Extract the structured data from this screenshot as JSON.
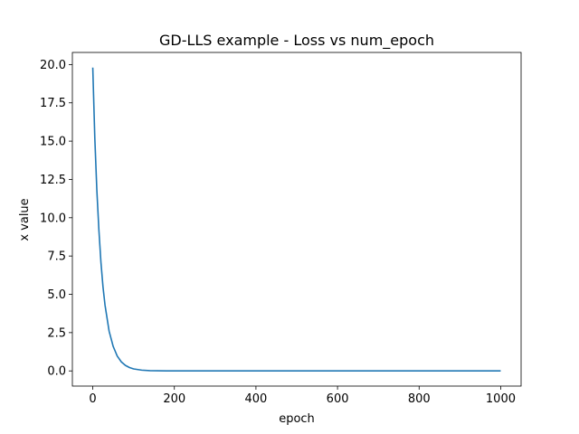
{
  "chart_data": {
    "type": "line",
    "title": "GD-LLS example - Loss vs num_epoch",
    "xlabel": "epoch",
    "ylabel": "x value",
    "xlim": [
      -50,
      1050
    ],
    "ylim": [
      -0.99,
      20.79
    ],
    "x_ticks": [
      0,
      200,
      400,
      600,
      800,
      1000
    ],
    "y_ticks": [
      0.0,
      2.5,
      5.0,
      7.5,
      10.0,
      12.5,
      15.0,
      17.5,
      20.0
    ],
    "x_tick_labels": [
      "0",
      "200",
      "400",
      "600",
      "800",
      "1000"
    ],
    "y_tick_labels": [
      "0.0",
      "2.5",
      "5.0",
      "7.5",
      "10.0",
      "12.5",
      "15.0",
      "17.5",
      "20.0"
    ],
    "grid": false,
    "legend": "none",
    "series": [
      {
        "color": "#1f77b4",
        "x": [
          0,
          5,
          10,
          15,
          20,
          25,
          30,
          40,
          50,
          60,
          70,
          80,
          90,
          100,
          120,
          140,
          160,
          180,
          200,
          250,
          300,
          400,
          500,
          600,
          700,
          800,
          900,
          1000
        ],
        "values": [
          19.8,
          15.2,
          11.8,
          9.2,
          7.1,
          5.5,
          4.3,
          2.6,
          1.6,
          0.97,
          0.59,
          0.36,
          0.22,
          0.13,
          0.05,
          0.02,
          0.01,
          0.004,
          0.002,
          0.0,
          0.0,
          0.0,
          0.0,
          0.0,
          0.0,
          0.0,
          0.0,
          0.0
        ]
      }
    ]
  }
}
